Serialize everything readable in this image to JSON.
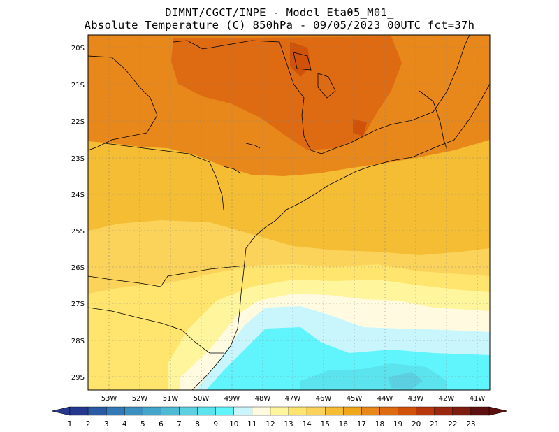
{
  "title": {
    "line1": "DIMNT/CGCT/INPE -  Model Eta05_M01_",
    "line2": "Absolute Temperature (C) 850hPa -  09/05/2023 00UTC fct=37h"
  },
  "axes": {
    "lat_labels": [
      "20S",
      "21S",
      "22S",
      "23S",
      "24S",
      "25S",
      "26S",
      "27S",
      "28S",
      "29S"
    ],
    "lon_labels": [
      "53W",
      "52W",
      "51W",
      "50W",
      "49W",
      "48W",
      "47W",
      "46W",
      "45W",
      "44W",
      "43W",
      "42W",
      "41W"
    ]
  },
  "colorbar": {
    "labels": [
      "1",
      "2",
      "3",
      "4",
      "5",
      "6",
      "7",
      "8",
      "9",
      "10",
      "11",
      "12",
      "13",
      "14",
      "15",
      "16",
      "17",
      "18",
      "19",
      "20",
      "21",
      "22",
      "23"
    ],
    "colors": [
      "#26378f",
      "#2a5aa6",
      "#3379b6",
      "#3b90c0",
      "#44a4c9",
      "#4fbad4",
      "#5ccfe0",
      "#5be3ee",
      "#60f5fd",
      "#c9f6fd",
      "#fffae0",
      "#fff59c",
      "#ffe46d",
      "#fbd25a",
      "#f5bd33",
      "#f0a818",
      "#e8881a",
      "#de6a12",
      "#d05208",
      "#b8380b",
      "#9a2810",
      "#7d1d12",
      "#5e1010"
    ]
  },
  "map": {
    "lat_range": [
      -29.4,
      -19.7
    ],
    "lon_range": [
      -53.6,
      -40.6
    ],
    "field": "temperature_850hPa_C"
  }
}
